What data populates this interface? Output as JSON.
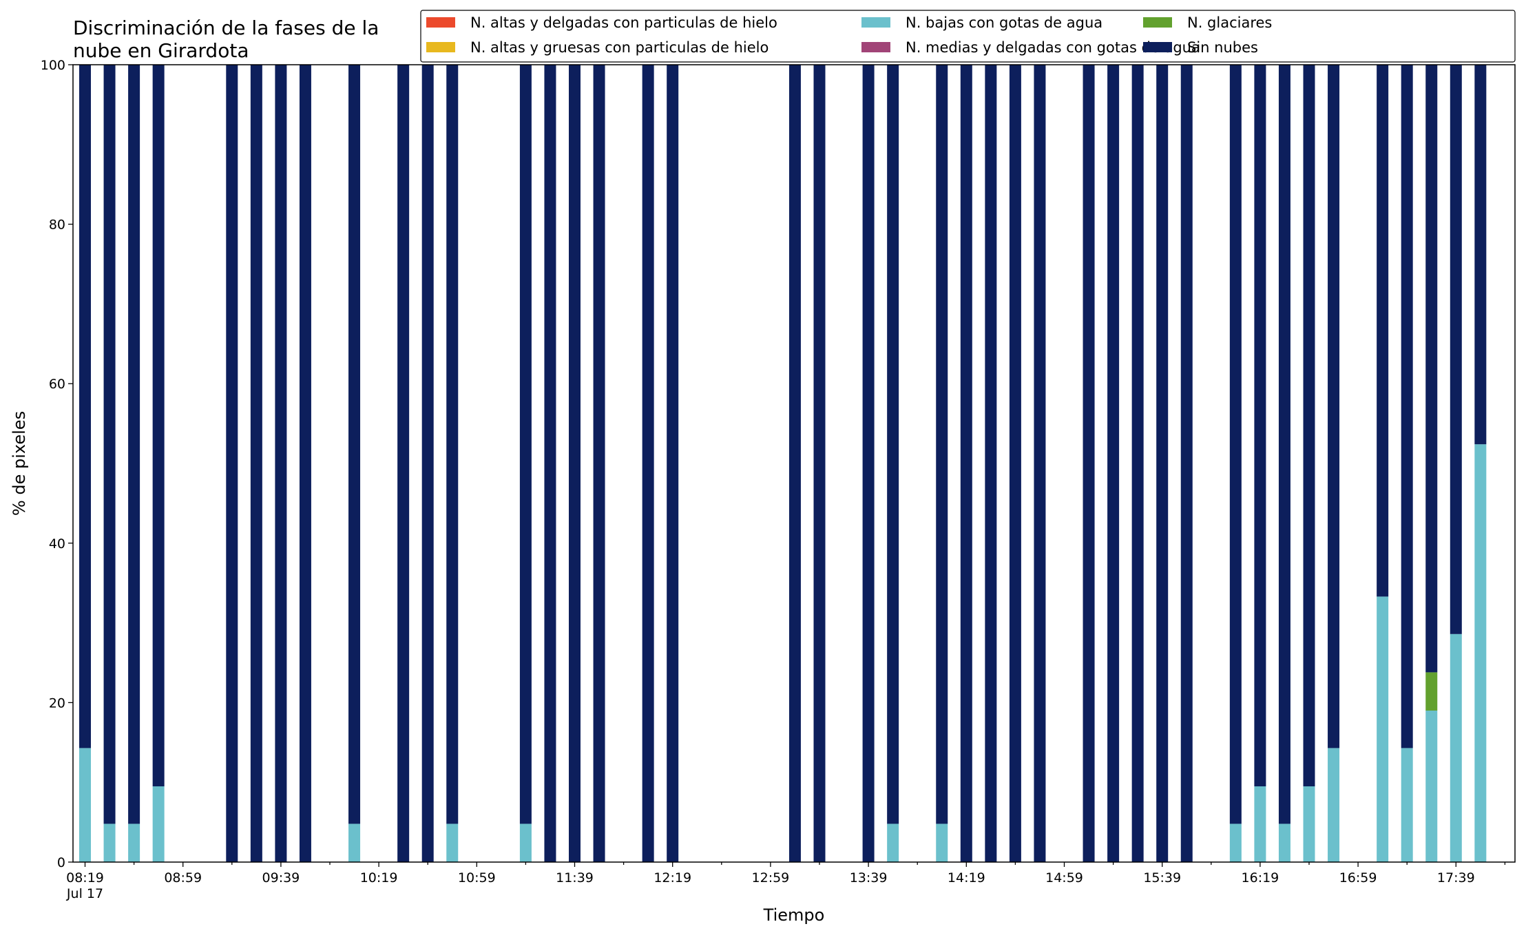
{
  "chart_data": {
    "type": "bar",
    "stacked": true,
    "title_lines": [
      "Discriminación de la fases de la",
      "nube en Girardota"
    ],
    "xlabel": "Tiempo",
    "ylabel": "% de pixeles",
    "ylim": [
      0,
      100
    ],
    "y_ticks": [
      "0",
      "20",
      "40",
      "60",
      "80",
      "100"
    ],
    "x_tick_labels": [
      "08:19",
      "08:59",
      "09:39",
      "10:19",
      "10:59",
      "11:39",
      "12:19",
      "12:59",
      "13:39",
      "14:19",
      "14:59",
      "15:39",
      "16:19",
      "16:59",
      "17:39"
    ],
    "x_date_label": "Jul 17",
    "x_start": "08:19",
    "x_interval_minutes": 10,
    "legend_position": "top-right",
    "series": [
      {
        "name": "N. altas y delgadas con particulas de hielo",
        "color": "#ec4a2c",
        "values": [
          0,
          0,
          0,
          0,
          null,
          null,
          0,
          0,
          0,
          0,
          null,
          0,
          null,
          0,
          0,
          0,
          null,
          null,
          0,
          0,
          0,
          0,
          null,
          0,
          0,
          null,
          null,
          null,
          null,
          0,
          0,
          null,
          0,
          0,
          null,
          0,
          0,
          0,
          0,
          0,
          null,
          0,
          0,
          0,
          0,
          0,
          null,
          0,
          0,
          0,
          0,
          0,
          null,
          0,
          0,
          0,
          0,
          0
        ]
      },
      {
        "name": "N. altas y gruesas con particulas de hielo",
        "color": "#e8b81e",
        "values": [
          0,
          0,
          0,
          0,
          null,
          null,
          0,
          0,
          0,
          0,
          null,
          0,
          null,
          0,
          0,
          0,
          null,
          null,
          0,
          0,
          0,
          0,
          null,
          0,
          0,
          null,
          null,
          null,
          null,
          0,
          0,
          null,
          0,
          0,
          null,
          0,
          0,
          0,
          0,
          0,
          null,
          0,
          0,
          0,
          0,
          0,
          null,
          0,
          0,
          0,
          0,
          0,
          null,
          0,
          0,
          0,
          0,
          0
        ]
      },
      {
        "name": "N. bajas con gotas de agua",
        "color": "#6bc0cc",
        "values": [
          14.3,
          4.8,
          4.8,
          9.5,
          null,
          null,
          0,
          0,
          0,
          0,
          null,
          4.8,
          null,
          0,
          0,
          4.8,
          null,
          null,
          4.8,
          0,
          0,
          0,
          null,
          0,
          0,
          null,
          null,
          null,
          null,
          0,
          0,
          null,
          0,
          4.8,
          null,
          4.8,
          0,
          0,
          0,
          0,
          null,
          0,
          0,
          0,
          0,
          0,
          null,
          4.8,
          9.5,
          4.8,
          9.5,
          14.3,
          null,
          33.3,
          14.3,
          19.0,
          28.6,
          52.4
        ]
      },
      {
        "name": "N. medias y delgadas con gotas de agua",
        "color": "#a14477",
        "values": [
          0,
          0,
          0,
          0,
          null,
          null,
          0,
          0,
          0,
          0,
          null,
          0,
          null,
          0,
          0,
          0,
          null,
          null,
          0,
          0,
          0,
          0,
          null,
          0,
          0,
          null,
          null,
          null,
          null,
          0,
          0,
          null,
          0,
          0,
          null,
          0,
          0,
          0,
          0,
          0,
          null,
          0,
          0,
          0,
          0,
          0,
          null,
          0,
          0,
          0,
          0,
          0,
          null,
          0,
          0,
          0,
          0,
          0
        ]
      },
      {
        "name": "N. glaciares",
        "color": "#62a12e",
        "values": [
          0,
          0,
          0,
          0,
          null,
          null,
          0,
          0,
          0,
          0,
          null,
          0,
          null,
          0,
          0,
          0,
          null,
          null,
          0,
          0,
          0,
          0,
          null,
          0,
          0,
          null,
          null,
          null,
          null,
          0,
          0,
          null,
          0,
          0,
          null,
          0,
          0,
          0,
          0,
          0,
          null,
          0,
          0,
          0,
          0,
          0,
          null,
          0,
          0,
          0,
          0,
          0,
          null,
          0,
          0,
          4.8,
          0,
          0
        ]
      },
      {
        "name": "Sin nubes",
        "color": "#0d1f5c",
        "values": [
          85.7,
          95.2,
          95.2,
          90.5,
          null,
          null,
          100,
          100,
          100,
          100,
          null,
          95.2,
          null,
          100,
          100,
          95.2,
          null,
          null,
          95.2,
          100,
          100,
          100,
          null,
          100,
          100,
          null,
          null,
          null,
          null,
          100,
          100,
          null,
          100,
          95.2,
          null,
          95.2,
          100,
          100,
          100,
          100,
          null,
          100,
          100,
          100,
          100,
          100,
          null,
          95.2,
          90.5,
          95.2,
          90.5,
          85.7,
          null,
          66.7,
          85.7,
          76.2,
          71.4,
          47.6
        ]
      }
    ]
  }
}
